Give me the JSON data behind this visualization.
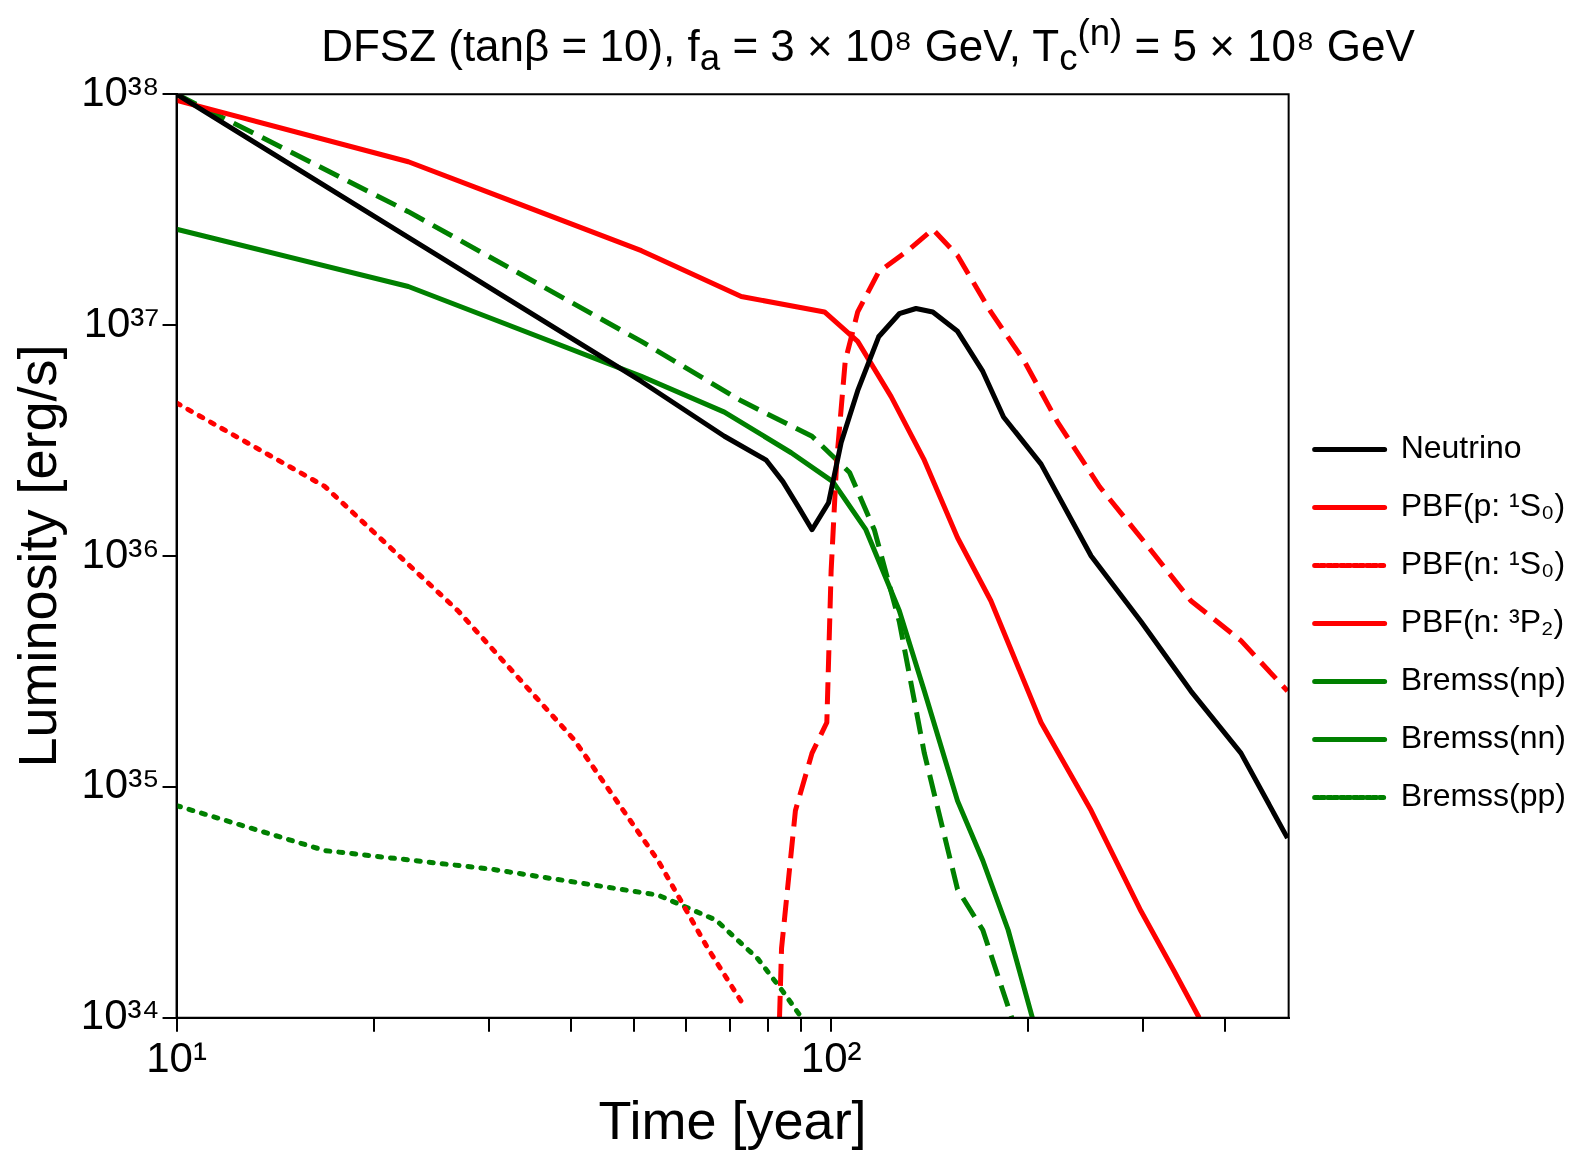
{
  "chart_data": {
    "type": "line",
    "title": "DFSZ (tanβ = 10), f$_{a}$ = 3 × 10⁸ GeV, T$_{c}$$^{(n)}$ = 5 × 10⁸ GeV",
    "xlabel": "Time [year]",
    "ylabel": "Luminosity [erg/s]",
    "log": "xy",
    "grid": false,
    "legend": "right",
    "marker": "none",
    "xlim": [
      10,
      500
    ],
    "ylim": [
      1e+34,
      1e+38
    ],
    "xticks": [
      {
        "value": 10,
        "label": "10¹"
      },
      {
        "value": 20,
        "label": null
      },
      {
        "value": 30,
        "label": null
      },
      {
        "value": 40,
        "label": null
      },
      {
        "value": 50,
        "label": null
      },
      {
        "value": 60,
        "label": null
      },
      {
        "value": 70,
        "label": null
      },
      {
        "value": 80,
        "label": null
      },
      {
        "value": 90,
        "label": null
      },
      {
        "value": 100,
        "label": "10²"
      },
      {
        "value": 200,
        "label": null
      },
      {
        "value": 300,
        "label": null
      },
      {
        "value": 400,
        "label": null
      }
    ],
    "yticks": [
      {
        "value": 1e+34,
        "label": "10³⁴"
      },
      {
        "value": 1e+35,
        "label": "10³⁵"
      },
      {
        "value": 1e+36,
        "label": "10³⁶"
      },
      {
        "value": 1e+37,
        "label": "10³⁷"
      },
      {
        "value": 1e+38,
        "label": "10³⁸"
      }
    ],
    "series": [
      {
        "name": "Neutrino",
        "color": "#000000",
        "line_style": "solid",
        "x": [
          10,
          22.6,
          51.3,
          68.7,
          79.6,
          84.4,
          89.5,
          93.5,
          99.1,
          103.6,
          109.8,
          118.2,
          127.1,
          134.8,
          143,
          156,
          170.5,
          183.4,
          209.3,
          249.6,
          297.4,
          354.5,
          422.8,
          498
        ],
        "values": [
          1e+38,
          2.4e+37,
          5.7e+36,
          3.3e+36,
          2.6e+36,
          2.1e+36,
          1.6e+36,
          1.3e+36,
          1.7e+36,
          3.1e+36,
          5.2e+36,
          8.9e+36,
          1.12e+37,
          1.18e+37,
          1.14e+37,
          9.4e+36,
          6.3e+36,
          4e+36,
          2.5e+36,
          1e+36,
          5.2e+35,
          2.6e+35,
          1.4e+35,
          6e+34
        ]
      },
      {
        "name": "PBF(p: ¹S₀)",
        "color": "#ff0000",
        "line_style": "solid",
        "x": [
          10,
          22.6,
          51.3,
          72.9,
          97.7,
          109.8,
          123.5,
          138.8,
          156,
          175.4,
          209.3,
          249.6,
          297.4,
          334,
          365
        ],
        "values": [
          9.4e+37,
          5.1e+37,
          2.1e+37,
          1.33e+37,
          1.14e+37,
          8.5e+36,
          4.9e+36,
          2.6e+36,
          1.2e+36,
          6.4e+35,
          1.9e+35,
          7.9e+34,
          2.9e+34,
          1.6e+34,
          1e+34
        ]
      },
      {
        "name": "PBF(n: ¹S₀)",
        "color": "#ff0000",
        "line_style": "dotted",
        "x": [
          10,
          16.85,
          26.9,
          40.5,
          54.4,
          64.8,
          74.0
        ],
        "values": [
          4.6e+36,
          2e+36,
          5.8e+35,
          1.6e+35,
          4.8e+34,
          2e+34,
          1.1e+34
        ]
      },
      {
        "name": "PBF(n: ³P₂)",
        "color": "#ff0000",
        "line_style": "dashed",
        "x": [
          83.4,
          84.0,
          88.2,
          93.5,
          98.5,
          100,
          102,
          105.1,
          109.8,
          118.2,
          130.9,
          143,
          156,
          175.4,
          197.2,
          221.8,
          257,
          297.4,
          354.5,
          422.8,
          498
        ],
        "values": [
          1e+34,
          2e+34,
          7.9e+34,
          1.4e+35,
          1.9e+35,
          8.6e+35,
          2.6e+36,
          7e+36,
          1.14e+37,
          1.7e+37,
          2.1e+37,
          2.6e+37,
          2e+37,
          1.14e+37,
          7e+36,
          3.8e+36,
          2e+36,
          1.2e+36,
          6.4e+35,
          4.3e+35,
          2.6e+35
        ]
      },
      {
        "name": "Bremss(np)",
        "color": "#008000",
        "line_style": "solid",
        "x": [
          10,
          22.6,
          51.3,
          68.7,
          86.9,
          100.6,
          113,
          127.1,
          138.8,
          156,
          170.5,
          186.4,
          203
        ],
        "values": [
          2.6e+37,
          1.47e+37,
          6e+36,
          4.2e+36,
          2.8e+36,
          2.1e+36,
          1.3e+36,
          5.8e+35,
          2.6e+35,
          8.7e+34,
          4.8e+34,
          2.4e+34,
          1e+34
        ]
      },
      {
        "name": "Bremss(nn)",
        "color": "#008000",
        "line_style": "dashed",
        "x": [
          10,
          22.6,
          51.3,
          72.9,
          93.5,
          106.7,
          116.4,
          127.1,
          138.8,
          156,
          170.5,
          188.8
        ],
        "values": [
          1e+38,
          3.1e+37,
          8.5e+36,
          4.7e+36,
          3.3e+36,
          2.3e+36,
          1.3e+36,
          5.2e+35,
          1.4e+35,
          3.6e+34,
          2.4e+34,
          1e+34
        ]
      },
      {
        "name": "Bremss(pp)",
        "color": "#008000",
        "line_style": "dotted",
        "x": [
          10,
          16.85,
          30.3,
          54.4,
          66.7,
          77.3,
          84.4,
          89.5
        ],
        "values": [
          8.3e+34,
          5.3e+34,
          4.4e+34,
          3.4e+34,
          2.65e+34,
          1.8e+34,
          1.3e+34,
          1.03e+34
        ]
      }
    ]
  }
}
